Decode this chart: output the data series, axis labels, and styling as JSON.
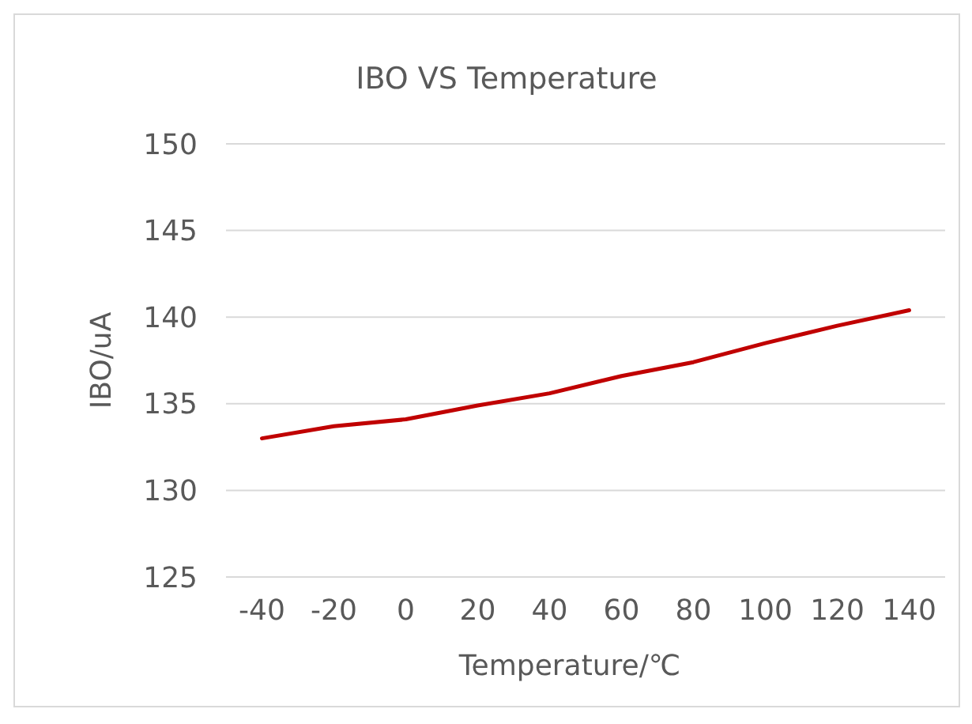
{
  "chart_data": {
    "type": "line",
    "title": "IBO VS Temperature",
    "xlabel": "Temperature/℃",
    "ylabel": "IBO/uA",
    "categories": [
      "-40",
      "-20",
      "0",
      "20",
      "40",
      "60",
      "80",
      "100",
      "120",
      "140"
    ],
    "series": [
      {
        "color": "#c00000",
        "values": [
          133.0,
          133.7,
          134.1,
          134.9,
          135.6,
          136.6,
          137.4,
          138.5,
          139.5,
          140.4
        ]
      }
    ],
    "ylim": [
      125,
      150
    ],
    "yticks": [
      125,
      130,
      135,
      140,
      145,
      150
    ],
    "grid": "y",
    "marker": "none",
    "line_style": "solid"
  }
}
